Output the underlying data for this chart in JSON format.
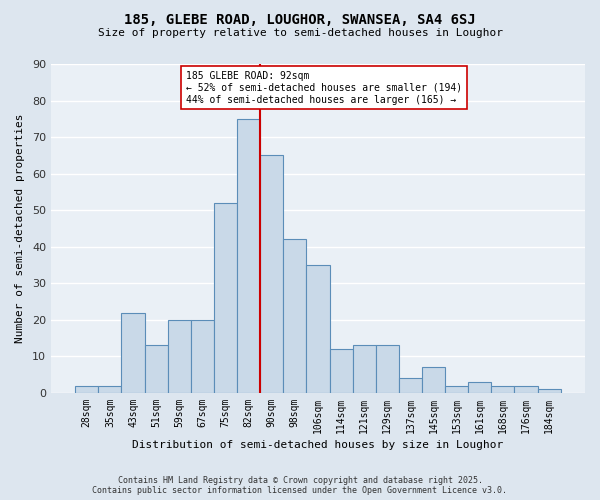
{
  "title1": "185, GLEBE ROAD, LOUGHOR, SWANSEA, SA4 6SJ",
  "title2": "Size of property relative to semi-detached houses in Loughor",
  "xlabel": "Distribution of semi-detached houses by size in Loughor",
  "ylabel": "Number of semi-detached properties",
  "bins": [
    "28sqm",
    "35sqm",
    "43sqm",
    "51sqm",
    "59sqm",
    "67sqm",
    "75sqm",
    "82sqm",
    "90sqm",
    "98sqm",
    "106sqm",
    "114sqm",
    "121sqm",
    "129sqm",
    "137sqm",
    "145sqm",
    "153sqm",
    "161sqm",
    "168sqm",
    "176sqm",
    "184sqm"
  ],
  "values": [
    2,
    2,
    22,
    13,
    20,
    20,
    52,
    75,
    65,
    42,
    35,
    12,
    13,
    13,
    4,
    7,
    2,
    3,
    2,
    2,
    1
  ],
  "bar_color": "#c9d9e8",
  "bar_edge_color": "#5b8db8",
  "vline_bin_index": 7,
  "vline_color": "#cc0000",
  "annotation_title": "185 GLEBE ROAD: 92sqm",
  "annotation_line1": "← 52% of semi-detached houses are smaller (194)",
  "annotation_line2": "44% of semi-detached houses are larger (165) →",
  "annotation_box_color": "#ffffff",
  "annotation_box_edge": "#cc0000",
  "footer1": "Contains HM Land Registry data © Crown copyright and database right 2025.",
  "footer2": "Contains public sector information licensed under the Open Government Licence v3.0.",
  "bg_color": "#dde6ef",
  "plot_bg_color": "#eaf0f6",
  "ylim": [
    0,
    90
  ],
  "yticks": [
    0,
    10,
    20,
    30,
    40,
    50,
    60,
    70,
    80,
    90
  ]
}
